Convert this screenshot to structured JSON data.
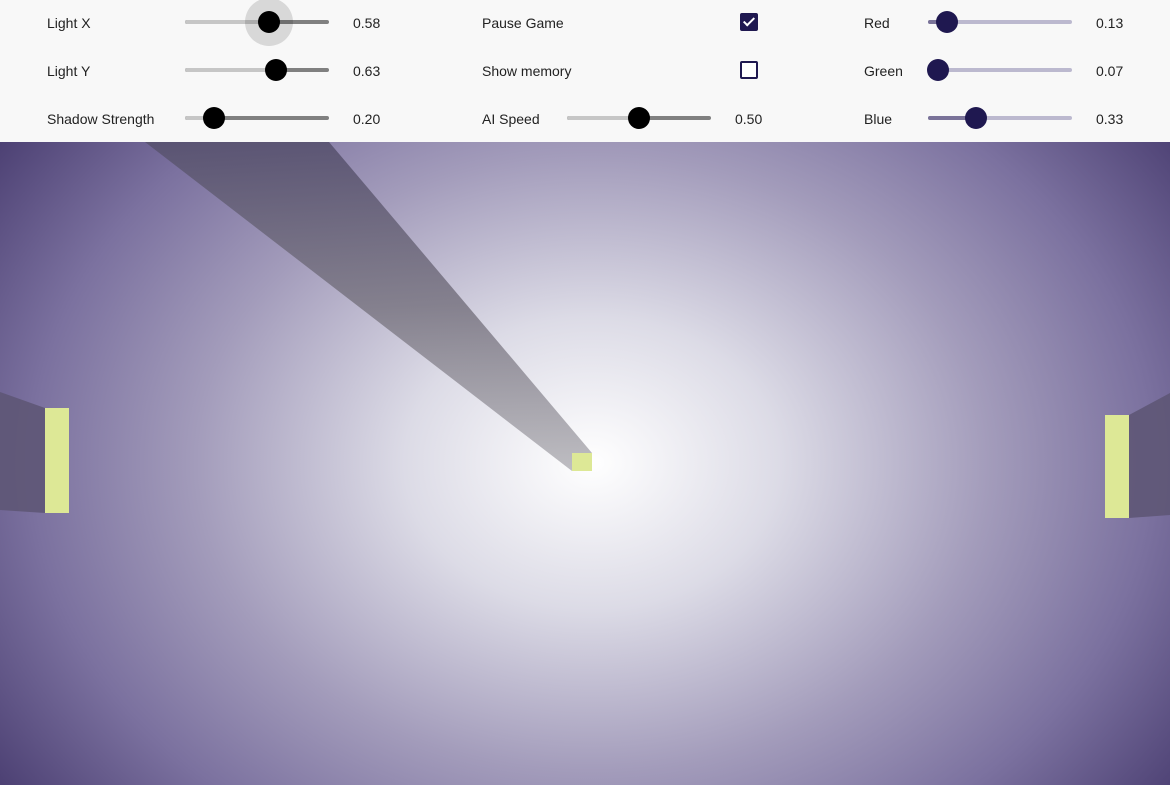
{
  "controls": {
    "light_x": {
      "label": "Light X",
      "value": 0.58,
      "display": "0.58"
    },
    "light_y": {
      "label": "Light Y",
      "value": 0.63,
      "display": "0.63"
    },
    "shadow_strength": {
      "label": "Shadow Strength",
      "value": 0.2,
      "display": "0.20"
    },
    "pause_game": {
      "label": "Pause Game",
      "checked": true
    },
    "show_memory": {
      "label": "Show memory",
      "checked": false
    },
    "ai_speed": {
      "label": "AI Speed",
      "value": 0.5,
      "display": "0.50"
    },
    "red": {
      "label": "Red",
      "value": 0.13,
      "display": "0.13"
    },
    "green": {
      "label": "Green",
      "value": 0.07,
      "display": "0.07"
    },
    "blue": {
      "label": "Blue",
      "value": 0.33,
      "display": "0.33"
    }
  },
  "game": {
    "colors": {
      "paddle": "#dde896",
      "ball": "#dde896",
      "shadow_ball": "#7d7a82",
      "shadow_paddle": "#5e5775"
    }
  }
}
